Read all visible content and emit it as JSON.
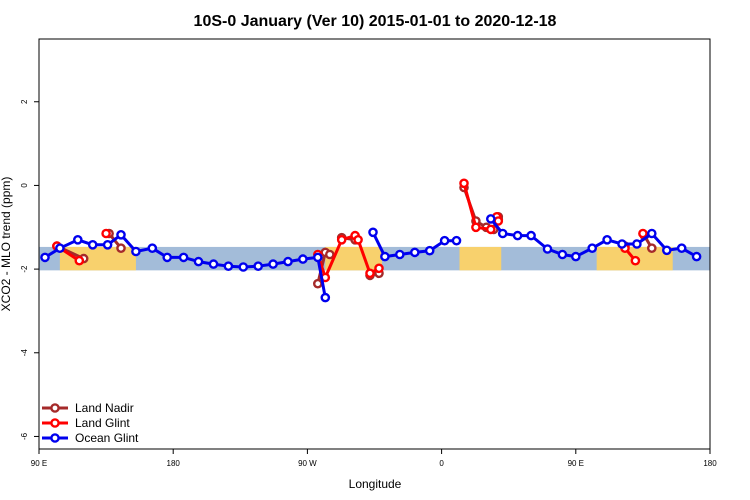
{
  "chart_data": {
    "type": "line",
    "title": "10S-0 January (Ver 10)   2015-01-01 to 2020-12-18",
    "xlabel": "Longitude",
    "ylabel": "XCO2 - MLO trend (ppm)",
    "xlim": [
      90,
      540
    ],
    "ylim": [
      -6.3,
      3.5
    ],
    "x_ticks": [
      {
        "value": 90,
        "label": "90 E"
      },
      {
        "value": 180,
        "label": "180"
      },
      {
        "value": 270,
        "label": "90 W"
      },
      {
        "value": 360,
        "label": "0"
      },
      {
        "value": 450,
        "label": "90 E"
      },
      {
        "value": 540,
        "label": "180"
      }
    ],
    "y_ticks": [
      {
        "value": -6,
        "label": "-6"
      },
      {
        "value": -4,
        "label": "-4"
      },
      {
        "value": -2,
        "label": "-2"
      },
      {
        "value": 0,
        "label": "0"
      },
      {
        "value": 2,
        "label": "2"
      }
    ],
    "map_strip": {
      "y_range": [
        -2.03,
        -1.47
      ],
      "ocean_color": "#a3bcd9",
      "land_color": "#f8d16d",
      "land_x_segments": [
        [
          104,
          155
        ],
        [
          282,
          320
        ],
        [
          372,
          400
        ],
        [
          464,
          515
        ]
      ]
    },
    "series": [
      {
        "name": "Land Nadir",
        "color": "#a52a2a",
        "segments": [
          [
            [
              102,
              -1.45
            ],
            [
              120,
              -1.75
            ]
          ],
          [
            [
              137,
              -1.15
            ],
            [
              145,
              -1.5
            ]
          ],
          [
            [
              277,
              -2.35
            ],
            [
              282,
              -1.6
            ],
            [
              285,
              -1.65
            ]
          ],
          [
            [
              293,
              -1.25
            ],
            [
              302,
              -1.3
            ]
          ],
          [
            [
              312,
              -2.15
            ],
            [
              318,
              -2.1
            ]
          ],
          [
            [
              375,
              -0.05
            ],
            [
              383,
              -0.85
            ],
            [
              390,
              -1.0
            ],
            [
              395,
              -1.05
            ]
          ],
          [
            [
              398,
              -0.75
            ],
            [
              398,
              -0.82
            ]
          ],
          [
            [
              483,
              -1.45
            ]
          ],
          [
            [
              496,
              -1.2
            ],
            [
              501,
              -1.5
            ]
          ]
        ]
      },
      {
        "name": "Land Glint",
        "color": "#ff0000",
        "segments": [
          [
            [
              102,
              -1.45
            ],
            [
              117,
              -1.8
            ]
          ],
          [
            [
              135,
              -1.15
            ]
          ],
          [
            [
              277,
              -1.65
            ],
            [
              282,
              -2.2
            ],
            [
              293,
              -1.3
            ],
            [
              302,
              -1.2
            ],
            [
              304,
              -1.3
            ],
            [
              312,
              -2.1
            ],
            [
              318,
              -1.98
            ]
          ],
          [
            [
              375,
              0.05
            ],
            [
              383,
              -1.0
            ],
            [
              393,
              -1.05
            ]
          ],
          [
            [
              397,
              -0.75
            ],
            [
              398,
              -0.85
            ]
          ],
          [
            [
              483,
              -1.5
            ],
            [
              490,
              -1.8
            ]
          ],
          [
            [
              495,
              -1.15
            ]
          ]
        ]
      },
      {
        "name": "Ocean Glint",
        "color": "#0000ee",
        "segments": [
          [
            [
              94,
              -1.72
            ],
            [
              104,
              -1.5
            ],
            [
              116,
              -1.3
            ],
            [
              126,
              -1.42
            ],
            [
              136,
              -1.42
            ],
            [
              145,
              -1.18
            ],
            [
              155,
              -1.58
            ],
            [
              166,
              -1.5
            ],
            [
              176,
              -1.72
            ],
            [
              187,
              -1.72
            ],
            [
              197,
              -1.82
            ],
            [
              207,
              -1.88
            ],
            [
              217,
              -1.93
            ],
            [
              227,
              -1.95
            ],
            [
              237,
              -1.93
            ],
            [
              247,
              -1.88
            ],
            [
              257,
              -1.82
            ],
            [
              267,
              -1.76
            ],
            [
              277,
              -1.72
            ],
            [
              282,
              -2.68
            ]
          ],
          [
            [
              314,
              -1.12
            ],
            [
              322,
              -1.7
            ],
            [
              332,
              -1.65
            ],
            [
              342,
              -1.6
            ],
            [
              352,
              -1.56
            ],
            [
              362,
              -1.32
            ],
            [
              370,
              -1.32
            ]
          ],
          [
            [
              393,
              -0.8
            ],
            [
              401,
              -1.15
            ],
            [
              411,
              -1.2
            ],
            [
              420,
              -1.2
            ],
            [
              431,
              -1.52
            ],
            [
              441,
              -1.65
            ],
            [
              450,
              -1.7
            ],
            [
              461,
              -1.5
            ],
            [
              471,
              -1.3
            ],
            [
              481,
              -1.4
            ],
            [
              491,
              -1.4
            ],
            [
              501,
              -1.15
            ],
            [
              511,
              -1.55
            ],
            [
              521,
              -1.5
            ],
            [
              531,
              -1.7
            ]
          ]
        ]
      }
    ],
    "legend": {
      "position": "bottom-left",
      "entries": [
        "Land Nadir",
        "Land Glint",
        "Ocean Glint"
      ]
    }
  }
}
